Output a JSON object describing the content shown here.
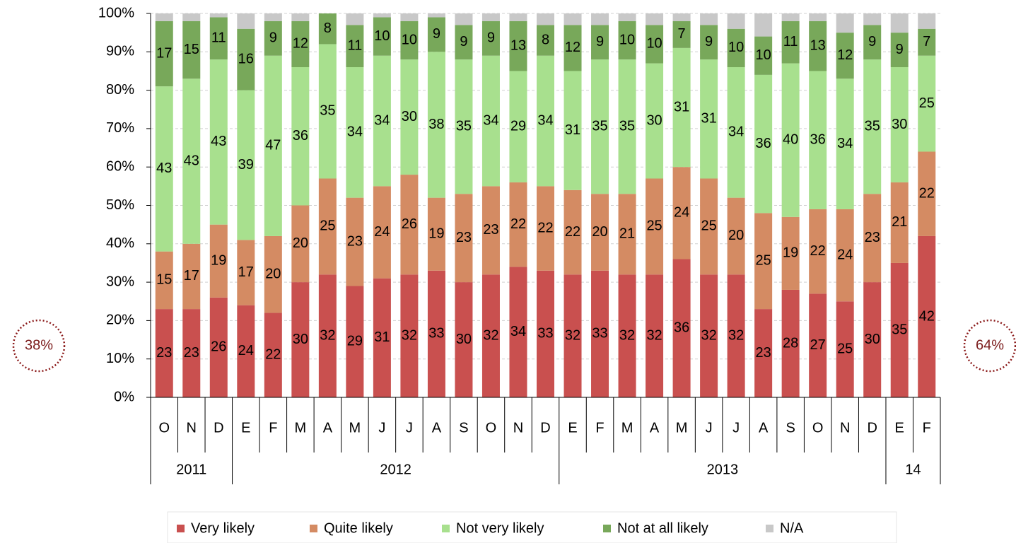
{
  "chart_data": {
    "type": "stacked_bar",
    "categories": [
      "O",
      "N",
      "D",
      "E",
      "F",
      "M",
      "A",
      "M",
      "J",
      "J",
      "A",
      "S",
      "O",
      "N",
      "D",
      "E",
      "F",
      "M",
      "A",
      "M",
      "J",
      "J",
      "A",
      "S",
      "O",
      "N",
      "D",
      "E",
      "F"
    ],
    "category_groups": [
      {
        "label": "2011",
        "span": 3
      },
      {
        "label": "2012",
        "span": 12
      },
      {
        "label": "2013",
        "span": 12
      },
      {
        "label": "14",
        "span": 2
      }
    ],
    "series": [
      {
        "name": "Very likely",
        "color": "#c9504f",
        "show_labels": true,
        "values": [
          23,
          23,
          26,
          24,
          22,
          30,
          32,
          29,
          31,
          32,
          33,
          30,
          32,
          34,
          33,
          32,
          33,
          32,
          32,
          36,
          32,
          32,
          23,
          28,
          27,
          25,
          30,
          35,
          42
        ]
      },
      {
        "name": "Quite likely",
        "color": "#d48b63",
        "show_labels": true,
        "values": [
          15,
          17,
          19,
          17,
          20,
          20,
          25,
          23,
          24,
          26,
          19,
          23,
          23,
          22,
          22,
          22,
          20,
          21,
          25,
          24,
          25,
          20,
          25,
          19,
          22,
          24,
          23,
          21,
          22
        ]
      },
      {
        "name": "Not very likely",
        "color": "#a8e08e",
        "show_labels": true,
        "values": [
          43,
          43,
          43,
          39,
          47,
          36,
          35,
          34,
          34,
          30,
          38,
          35,
          34,
          29,
          34,
          31,
          35,
          35,
          30,
          31,
          31,
          34,
          36,
          40,
          36,
          34,
          35,
          30,
          25
        ]
      },
      {
        "name": "Not at all likely",
        "color": "#78a85a",
        "show_labels": true,
        "values": [
          17,
          15,
          11,
          16,
          9,
          12,
          8,
          11,
          10,
          10,
          9,
          9,
          9,
          13,
          8,
          12,
          9,
          10,
          10,
          7,
          9,
          10,
          10,
          11,
          13,
          12,
          9,
          9,
          7
        ]
      },
      {
        "name": "N/A",
        "color": "#c8c8c8",
        "show_labels": false,
        "values": [
          2,
          2,
          1,
          4,
          2,
          2,
          0,
          3,
          1,
          2,
          1,
          3,
          2,
          2,
          3,
          3,
          3,
          2,
          3,
          2,
          3,
          4,
          6,
          2,
          2,
          5,
          3,
          5,
          4
        ]
      }
    ],
    "ylim": [
      0,
      100
    ],
    "yticks": [
      {
        "value": 0,
        "label": "0%"
      },
      {
        "value": 10,
        "label": "10%"
      },
      {
        "value": 20,
        "label": "20%"
      },
      {
        "value": 30,
        "label": "30%"
      },
      {
        "value": 40,
        "label": "40%"
      },
      {
        "value": 50,
        "label": "50%"
      },
      {
        "value": 60,
        "label": "60%"
      },
      {
        "value": 70,
        "label": "70%"
      },
      {
        "value": 80,
        "label": "80%"
      },
      {
        "value": 90,
        "label": "90%"
      },
      {
        "value": 100,
        "label": "100%"
      }
    ],
    "grid": true,
    "legend": "bottom",
    "annotations": [
      {
        "text": "38%",
        "side": "left"
      },
      {
        "text": "64%",
        "side": "right"
      }
    ]
  }
}
